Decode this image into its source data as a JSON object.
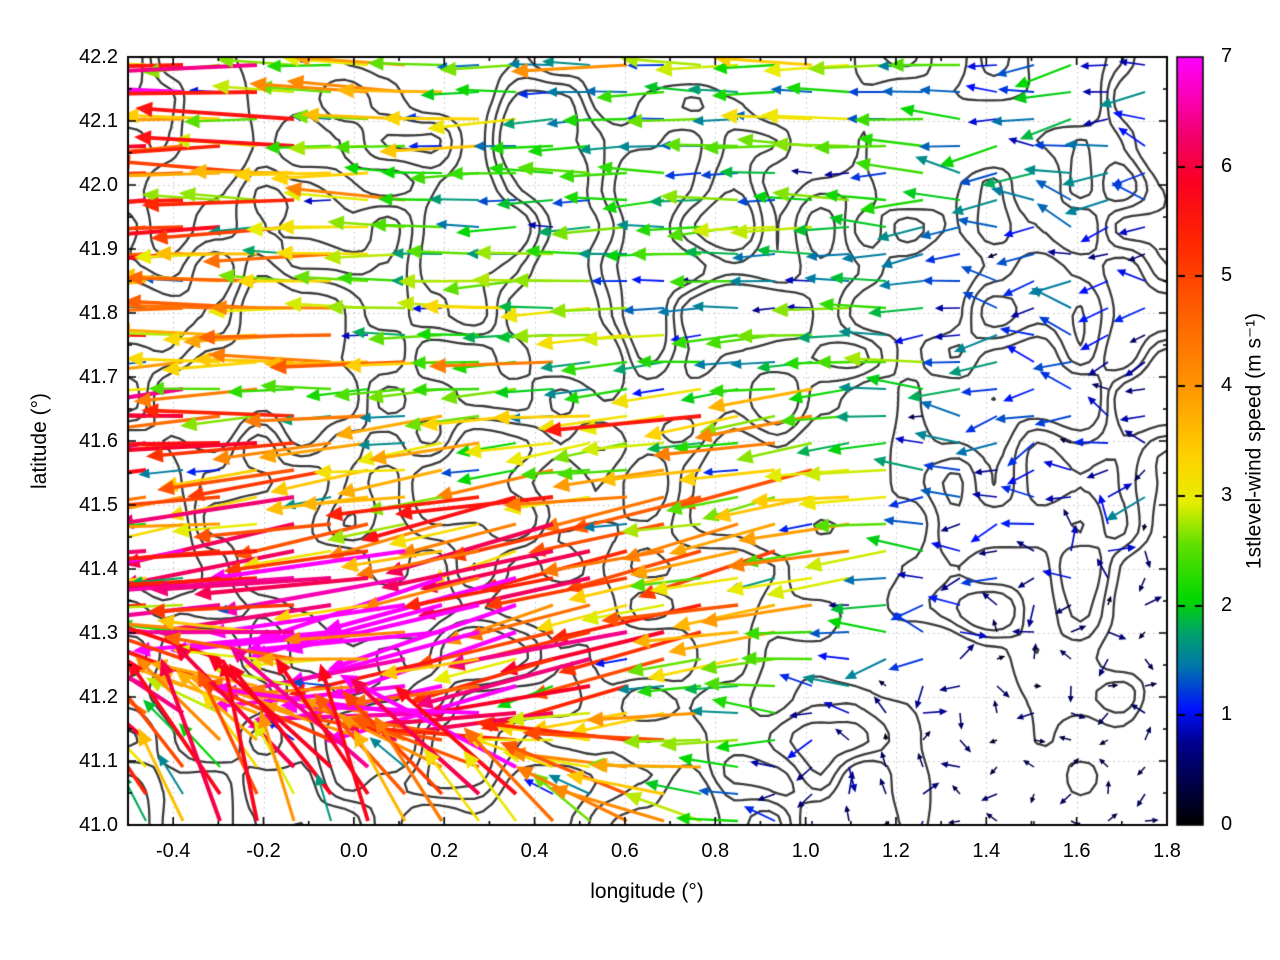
{
  "chart_data": {
    "type": "quiver",
    "title": "",
    "xlabel": "longitude (°)",
    "ylabel": "latitude (°)",
    "xlim": [
      -0.5,
      1.8
    ],
    "ylim": [
      41.0,
      42.2
    ],
    "xticks": [
      {
        "v": -0.4,
        "label": "-0.4"
      },
      {
        "v": -0.2,
        "label": "-0.2"
      },
      {
        "v": 0.0,
        "label": "0.0"
      },
      {
        "v": 0.2,
        "label": "0.2"
      },
      {
        "v": 0.4,
        "label": "0.4"
      },
      {
        "v": 0.6,
        "label": "0.6"
      },
      {
        "v": 0.8,
        "label": "0.8"
      },
      {
        "v": 1.0,
        "label": "1.0"
      },
      {
        "v": 1.2,
        "label": "1.2"
      },
      {
        "v": 1.4,
        "label": "1.4"
      },
      {
        "v": 1.6,
        "label": "1.6"
      },
      {
        "v": 1.8,
        "label": "1.8"
      }
    ],
    "x_minor_step": 0.1,
    "yticks": [
      {
        "v": 41.0,
        "label": "41.0"
      },
      {
        "v": 41.1,
        "label": "41.1"
      },
      {
        "v": 41.2,
        "label": "41.2"
      },
      {
        "v": 41.3,
        "label": "41.3"
      },
      {
        "v": 41.4,
        "label": "41.4"
      },
      {
        "v": 41.5,
        "label": "41.5"
      },
      {
        "v": 41.6,
        "label": "41.6"
      },
      {
        "v": 41.7,
        "label": "41.7"
      },
      {
        "v": 41.8,
        "label": "41.8"
      },
      {
        "v": 41.9,
        "label": "41.9"
      },
      {
        "v": 42.0,
        "label": "42.0"
      },
      {
        "v": 42.1,
        "label": "42.1"
      },
      {
        "v": 42.2,
        "label": "42.2"
      }
    ],
    "y_minor_step": 0.05,
    "grid": {
      "style": "dotted",
      "color": "#c4c4c4"
    },
    "frame_color": "#000000",
    "background": "#ffffff",
    "colorbar": {
      "label": "1stlevel-wind speed (m s⁻¹)",
      "range": [
        0,
        7
      ],
      "ticks": [
        {
          "v": 0,
          "label": "0"
        },
        {
          "v": 1,
          "label": "1"
        },
        {
          "v": 2,
          "label": "2"
        },
        {
          "v": 3,
          "label": "3"
        },
        {
          "v": 4,
          "label": "4"
        },
        {
          "v": 5,
          "label": "5"
        },
        {
          "v": 6,
          "label": "6"
        },
        {
          "v": 7,
          "label": "7"
        }
      ],
      "palette_stops": [
        [
          0.0,
          "#000000"
        ],
        [
          0.75,
          "#00008f"
        ],
        [
          1.05,
          "#0010ff"
        ],
        [
          1.45,
          "#0077aa"
        ],
        [
          1.75,
          "#00a36b"
        ],
        [
          2.05,
          "#00d800"
        ],
        [
          2.55,
          "#5fe000"
        ],
        [
          2.95,
          "#e8ee00"
        ],
        [
          3.35,
          "#ffd300"
        ],
        [
          4.0,
          "#ff9500"
        ],
        [
          4.7,
          "#ff5e00"
        ],
        [
          5.3,
          "#ff2800"
        ],
        [
          5.85,
          "#fb0020"
        ],
        [
          6.25,
          "#f20066"
        ],
        [
          6.6,
          "#f900b0"
        ],
        [
          7.0,
          "#ff00ff"
        ]
      ]
    },
    "wind_field": {
      "units": "m s⁻¹",
      "lon_nodes": [
        -0.5,
        -0.2,
        0.1,
        0.4,
        0.7,
        1.0,
        1.3,
        1.6,
        1.8
      ],
      "lat_nodes": [
        42.2,
        42.0,
        41.8,
        41.6,
        41.4,
        41.2,
        41.0
      ],
      "speed": [
        [
          5.2,
          4.5,
          3.0,
          2.0,
          2.0,
          2.5,
          2.0,
          1.5,
          1.2
        ],
        [
          4.8,
          4.0,
          3.0,
          2.0,
          1.8,
          2.2,
          1.5,
          1.2,
          1.0
        ],
        [
          4.5,
          3.5,
          2.8,
          2.2,
          2.2,
          2.0,
          1.5,
          1.0,
          0.8
        ],
        [
          5.0,
          4.2,
          3.2,
          2.5,
          2.5,
          3.2,
          1.2,
          0.8,
          0.8
        ],
        [
          5.0,
          4.8,
          5.5,
          6.5,
          4.5,
          4.5,
          1.0,
          0.7,
          0.6
        ],
        [
          4.8,
          4.5,
          5.2,
          6.3,
          3.5,
          1.0,
          0.5,
          0.4,
          0.4
        ],
        [
          4.2,
          4.5,
          4.5,
          4.0,
          3.0,
          0.7,
          0.4,
          0.3,
          0.3
        ]
      ],
      "direction_deg": [
        [
          180,
          180,
          178,
          182,
          180,
          178,
          182,
          185,
          180
        ],
        [
          180,
          180,
          180,
          180,
          182,
          180,
          180,
          175,
          180
        ],
        [
          182,
          180,
          180,
          182,
          184,
          182,
          180,
          180,
          180
        ],
        [
          185,
          184,
          186,
          188,
          186,
          190,
          180,
          180,
          180
        ],
        [
          188,
          190,
          192,
          195,
          192,
          195,
          180,
          180,
          180
        ],
        [
          150,
          162,
          185,
          197,
          190,
          180,
          180,
          180,
          180
        ],
        [
          115,
          105,
          112,
          130,
          160,
          180,
          180,
          180,
          180
        ]
      ],
      "arrow_grid": {
        "cols": 28,
        "rows": 29
      },
      "random_direction_below": 0.75
    },
    "contours": {
      "description": "orography contour lines over the map",
      "color": "#3d3d3d",
      "linewidth": 2.3,
      "levels": [
        0.47,
        0.57,
        0.67
      ]
    }
  }
}
